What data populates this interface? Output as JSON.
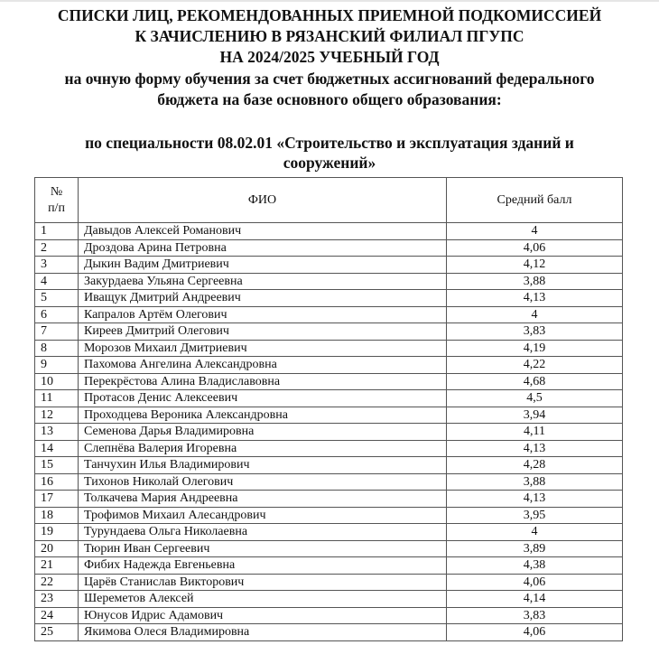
{
  "heading": {
    "line1": "СПИСКИ ЛИЦ, РЕКОМЕНДОВАННЫХ ПРИЕМНОЙ ПОДКОМИССИЕЙ",
    "line2": "К ЗАЧИСЛЕНИЮ В РЯЗАНСКИЙ ФИЛИАЛ ПГУПС",
    "line3": "НА 2024/2025 УЧЕБНЫЙ ГОД",
    "line4": "на очную форму обучения за счет бюджетных ассигнований федерального",
    "line5": "бюджета на базе основного общего образования:",
    "specialty1": "по специальности 08.02.01 «Строительство и эксплуатация зданий и",
    "specialty2": "сооружений»"
  },
  "table": {
    "headers": {
      "num_line1": "№",
      "num_line2": "п/п",
      "name": "ФИО",
      "score": "Средний балл"
    },
    "rows": [
      {
        "n": "1",
        "name": "Давыдов Алексей Романович",
        "score": "4"
      },
      {
        "n": "2",
        "name": "Дроздова Арина Петровна",
        "score": "4,06"
      },
      {
        "n": "3",
        "name": "Дыкин Вадим Дмитриевич",
        "score": "4,12"
      },
      {
        "n": "4",
        "name": "Закурдаева Ульяна Сергеевна",
        "score": "3,88"
      },
      {
        "n": "5",
        "name": "Иващук Дмитрий Андреевич",
        "score": "4,13"
      },
      {
        "n": "6",
        "name": "Капралов Артём Олегович",
        "score": "4"
      },
      {
        "n": "7",
        "name": "Киреев Дмитрий Олегович",
        "score": "3,83"
      },
      {
        "n": "8",
        "name": "Морозов Михаил Дмитриевич",
        "score": "4,19"
      },
      {
        "n": "9",
        "name": "Пахомова Ангелина Александровна",
        "score": "4,22"
      },
      {
        "n": "10",
        "name": "Перекрёстова Алина Владиславовна",
        "score": "4,68"
      },
      {
        "n": "11",
        "name": "Протасов Денис Алексеевич",
        "score": "4,5"
      },
      {
        "n": "12",
        "name": "Проходцева Вероника Александровна",
        "score": "3,94"
      },
      {
        "n": "13",
        "name": "Семенова Дарья Владимировна",
        "score": "4,11"
      },
      {
        "n": "14",
        "name": "Слепнёва Валерия Игоревна",
        "score": "4,13"
      },
      {
        "n": "15",
        "name": "Танчухин Илья Владимирович",
        "score": "4,28"
      },
      {
        "n": "16",
        "name": "Тихонов Николай Олегович",
        "score": "3,88"
      },
      {
        "n": "17",
        "name": "Толкачева Мария Андреевна",
        "score": "4,13"
      },
      {
        "n": "18",
        "name": "Трофимов Михаил Алесандрович",
        "score": "3,95"
      },
      {
        "n": "19",
        "name": "Турундаева Ольга Николаевна",
        "score": "4"
      },
      {
        "n": "20",
        "name": "Тюрин Иван Сергеевич",
        "score": "3,89"
      },
      {
        "n": "21",
        "name": "Фибих Надежда Евгеньевна",
        "score": "4,38"
      },
      {
        "n": "22",
        "name": "Царёв Станислав Викторович",
        "score": "4,06"
      },
      {
        "n": "23",
        "name": "Шереметов Алексей",
        "score": "4,14"
      },
      {
        "n": "24",
        "name": "Юнусов Идрис Адамович",
        "score": "3,83"
      },
      {
        "n": "25",
        "name": "Якимова Олеся Владимировна",
        "score": "4,06"
      }
    ]
  }
}
